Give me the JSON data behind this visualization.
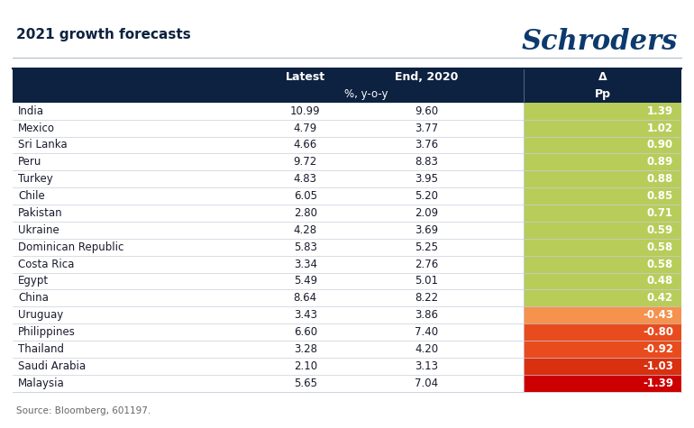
{
  "title": "2021 growth forecasts",
  "logo": "Schroders",
  "source": "Source: Bloomberg, 601197.",
  "header_bg": "#0d2240",
  "col_headers": [
    "Latest",
    "End, 2020",
    "Δ"
  ],
  "col_subheader": "%, y-o-y",
  "col_subheader2": "Pp",
  "countries": [
    "India",
    "Mexico",
    "Sri Lanka",
    "Peru",
    "Turkey",
    "Chile",
    "Pakistan",
    "Ukraine",
    "Dominican Republic",
    "Costa Rica",
    "Egypt",
    "China",
    "Uruguay",
    "Philippines",
    "Thailand",
    "Saudi Arabia",
    "Malaysia"
  ],
  "latest": [
    10.99,
    4.79,
    4.66,
    9.72,
    4.83,
    6.05,
    2.8,
    4.28,
    5.83,
    3.34,
    5.49,
    8.64,
    3.43,
    6.6,
    3.28,
    2.1,
    5.65
  ],
  "end2020": [
    9.6,
    3.77,
    3.76,
    8.83,
    3.95,
    5.2,
    2.09,
    3.69,
    5.25,
    2.76,
    5.01,
    8.22,
    3.86,
    7.4,
    4.2,
    3.13,
    7.04
  ],
  "delta": [
    1.39,
    1.02,
    0.9,
    0.89,
    0.88,
    0.85,
    0.71,
    0.59,
    0.58,
    0.58,
    0.48,
    0.42,
    -0.43,
    -0.8,
    -0.92,
    -1.03,
    -1.39
  ],
  "delta_colors": [
    "#b8cc5a",
    "#b8cc5a",
    "#b8cc5a",
    "#b8cc5a",
    "#b8cc5a",
    "#b8cc5a",
    "#b8cc5a",
    "#b8cc5a",
    "#b8cc5a",
    "#b8cc5a",
    "#b8cc5a",
    "#b8cc5a",
    "#f5924e",
    "#e84c1e",
    "#e84c1e",
    "#d93010",
    "#cc0000"
  ],
  "bg_color": "#ffffff",
  "border_color": "#c8d0dc",
  "title_color": "#0d2240",
  "source_color": "#666666",
  "title_fontsize": 11,
  "logo_fontsize": 22,
  "header_fontsize": 9,
  "data_fontsize": 8.5,
  "source_fontsize": 7.5
}
